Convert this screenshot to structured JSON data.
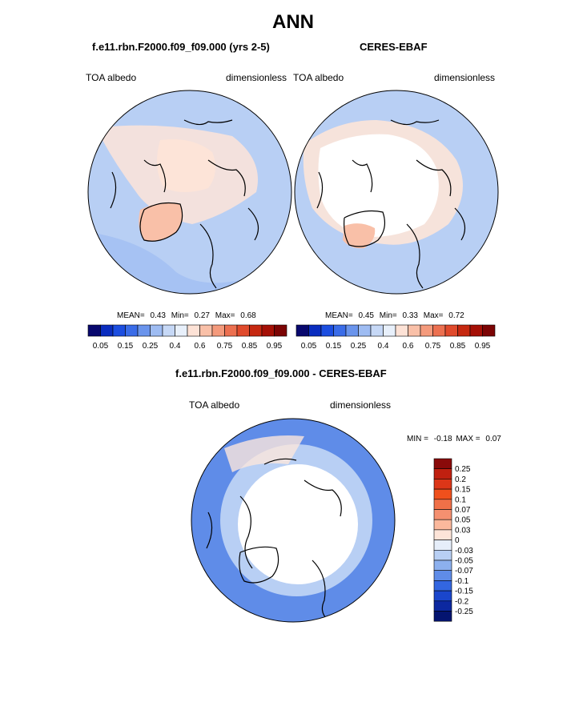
{
  "figure": {
    "title": "ANN",
    "left_title": "f.e11.rbn.F2000.f09_f09.000 (yrs 2-5)",
    "right_title": "CERES-EBAF",
    "diff_title": "f.e11.rbn.F2000.f09_f09.000 - CERES-EBAF"
  },
  "panels": {
    "left": {
      "variable": "TOA albedo",
      "units": "dimensionless",
      "stats": {
        "mean_label": "MEAN=",
        "mean": "0.43",
        "min_label": "Min=",
        "min": "0.27",
        "max_label": "Max=",
        "max": "0.68"
      }
    },
    "right": {
      "variable": "TOA albedo",
      "units": "dimensionless",
      "stats": {
        "mean_label": "MEAN=",
        "mean": "0.45",
        "min_label": "Min=",
        "min": "0.33",
        "max_label": "Max=",
        "max": "0.72"
      }
    },
    "diff": {
      "variable": "TOA albedo",
      "units": "dimensionless",
      "stats": {
        "min_label": "MIN =",
        "min": "-0.18",
        "max_label": "MAX =",
        "max": "0.07"
      }
    }
  },
  "colorbar_main": {
    "tick_labels": [
      "0.05",
      "0.15",
      "0.25",
      "0.4",
      "0.6",
      "0.75",
      "0.85",
      "0.95"
    ],
    "colors": [
      "#08086e",
      "#0a2dbf",
      "#1c4ee0",
      "#3a6ce8",
      "#6a94ec",
      "#9ebcf2",
      "#c6d8f6",
      "#e8f0fb",
      "#fde2d6",
      "#f9c0a8",
      "#f49a7c",
      "#ec7050",
      "#e04a2c",
      "#c62810",
      "#a51006",
      "#7c0404"
    ]
  },
  "colorbar_diff": {
    "labels": [
      "0.25",
      "0.2",
      "0.15",
      "0.1",
      "0.07",
      "0.05",
      "0.03",
      "0",
      "-0.03",
      "-0.05",
      "-0.07",
      "-0.1",
      "-0.15",
      "-0.2",
      "-0.25"
    ],
    "colors": [
      "#8a0a0a",
      "#c02010",
      "#dc3618",
      "#f0501c",
      "#f07048",
      "#f59070",
      "#fbb89c",
      "#fde4d8",
      "#e6eefa",
      "#b8cff4",
      "#8cb0ee",
      "#5f8ce8",
      "#3366e0",
      "#1a46cc",
      "#0c28a0",
      "#041470"
    ]
  },
  "map_colors": {
    "ocean_model": "#b8cff4",
    "ocean_model_dark": "#9ebcf2",
    "ice_model": "#fde4d8",
    "greenland_model": "#f9c0a8",
    "ocean_obs": "#b8cff4",
    "ice_obs": "#ffffff",
    "diff_ocean": "#5f8ce8",
    "diff_light": "#b8cff4",
    "diff_center": "#ffffff"
  }
}
